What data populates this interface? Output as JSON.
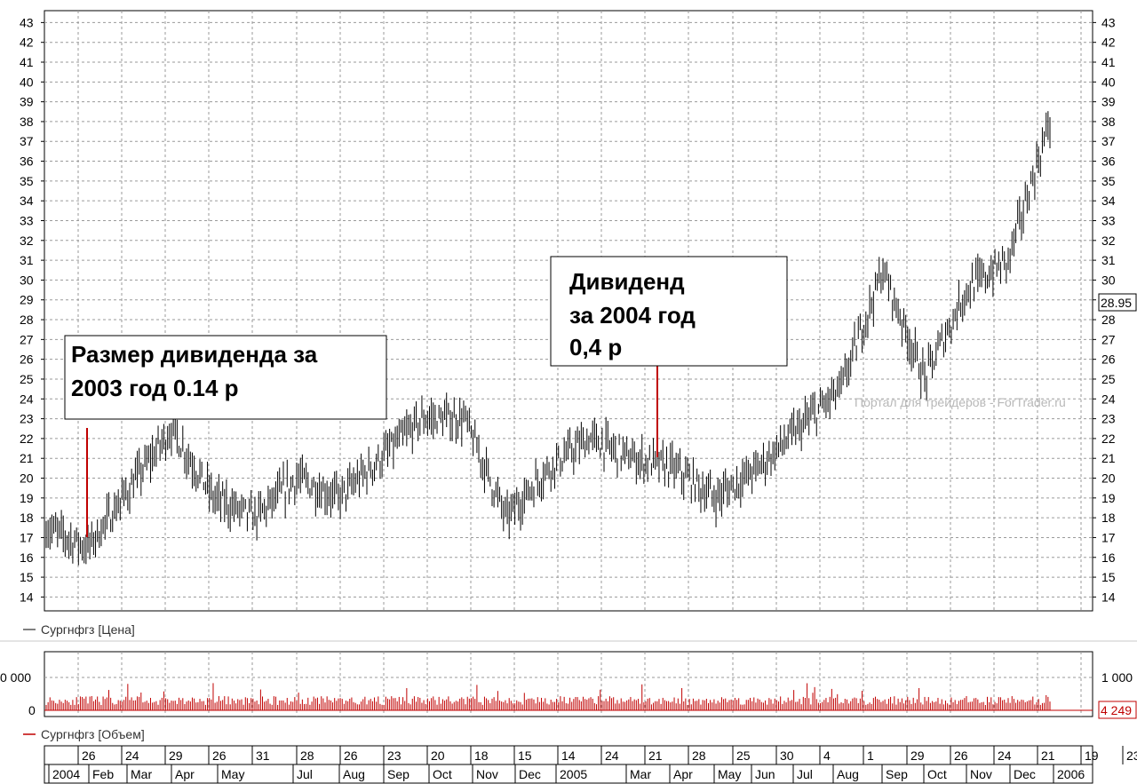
{
  "chart_data": [
    {
      "type": "ohlc",
      "y_axis_ticks": [
        14,
        15,
        16,
        17,
        18,
        19,
        20,
        21,
        22,
        23,
        24,
        25,
        26,
        27,
        28,
        29,
        30,
        31,
        32,
        33,
        34,
        35,
        36,
        37,
        38,
        39,
        40,
        41,
        42,
        43
      ],
      "ylim": [
        13.3,
        43.6
      ],
      "grid": true,
      "legend": "Сургнфгз [Цена]",
      "last_value_label": "28.95",
      "watermark": "Портал для трейдеров - ForTrader.ru",
      "annotations": [
        {
          "lines": [
            "Размер дивиденда за",
            "2003 год 0.14 р"
          ]
        },
        {
          "lines": [
            "Дивиденд",
            "за 2004 год",
            "0,4 р"
          ]
        }
      ],
      "series_description": "Daily price bars from early 2004 to early 2006",
      "approx_path": [
        {
          "date": "2004-01",
          "price": 17.5
        },
        {
          "date": "2004-02",
          "price": 16.5
        },
        {
          "date": "2004-03",
          "price": 19.5
        },
        {
          "date": "2004-04",
          "price": 22.5
        },
        {
          "date": "2004-05",
          "price": 19.0
        },
        {
          "date": "2004-06",
          "price": 18.0
        },
        {
          "date": "2004-07",
          "price": 20.0
        },
        {
          "date": "2004-08",
          "price": 19.0
        },
        {
          "date": "2004-09",
          "price": 21.0
        },
        {
          "date": "2004-10",
          "price": 23.0
        },
        {
          "date": "2004-11",
          "price": 23.0
        },
        {
          "date": "2004-12",
          "price": 18.0
        },
        {
          "date": "2005-01",
          "price": 20.5
        },
        {
          "date": "2005-02",
          "price": 22.0
        },
        {
          "date": "2005-03",
          "price": 21.0
        },
        {
          "date": "2005-04",
          "price": 20.5
        },
        {
          "date": "2005-05",
          "price": 19.0
        },
        {
          "date": "2005-06",
          "price": 20.5
        },
        {
          "date": "2005-07",
          "price": 22.5
        },
        {
          "date": "2005-08",
          "price": 24.5
        },
        {
          "date": "2005-09",
          "price": 30.5
        },
        {
          "date": "2005-10",
          "price": 25.0
        },
        {
          "date": "2005-11",
          "price": 29.5
        },
        {
          "date": "2005-12",
          "price": 31.0
        },
        {
          "date": "2006-01",
          "price": 38.0
        }
      ]
    },
    {
      "type": "bar",
      "y_axis_ticks_left": [
        "0 000",
        "0"
      ],
      "y_axis_ticks_right": [
        "1 000",
        "0"
      ],
      "legend": "Сургнфгз [Объем]",
      "last_value_label": "4 249"
    }
  ],
  "x_axis": {
    "day_labels": [
      "26",
      "24",
      "29",
      "26",
      "31",
      "28",
      "26",
      "23",
      "20",
      "18",
      "15",
      "14",
      "24",
      "21",
      "28",
      "25",
      "30",
      "4",
      "1",
      "29",
      "26",
      "24",
      "21",
      "19",
      "23"
    ],
    "month_labels": [
      "2004",
      "Feb",
      "Mar",
      "Apr",
      "May",
      "Jul",
      "Aug",
      "Sep",
      "Oct",
      "Nov",
      "Dec",
      "2005",
      "Mar",
      "Apr",
      "May",
      "Jun",
      "Jul",
      "Aug",
      "Sep",
      "Oct",
      "Nov",
      "Dec",
      "2006"
    ]
  },
  "colors": {
    "price": "#000000",
    "volume": "#c00000",
    "grid": "#9a9a9a",
    "dividend_marker": "#c00000"
  }
}
